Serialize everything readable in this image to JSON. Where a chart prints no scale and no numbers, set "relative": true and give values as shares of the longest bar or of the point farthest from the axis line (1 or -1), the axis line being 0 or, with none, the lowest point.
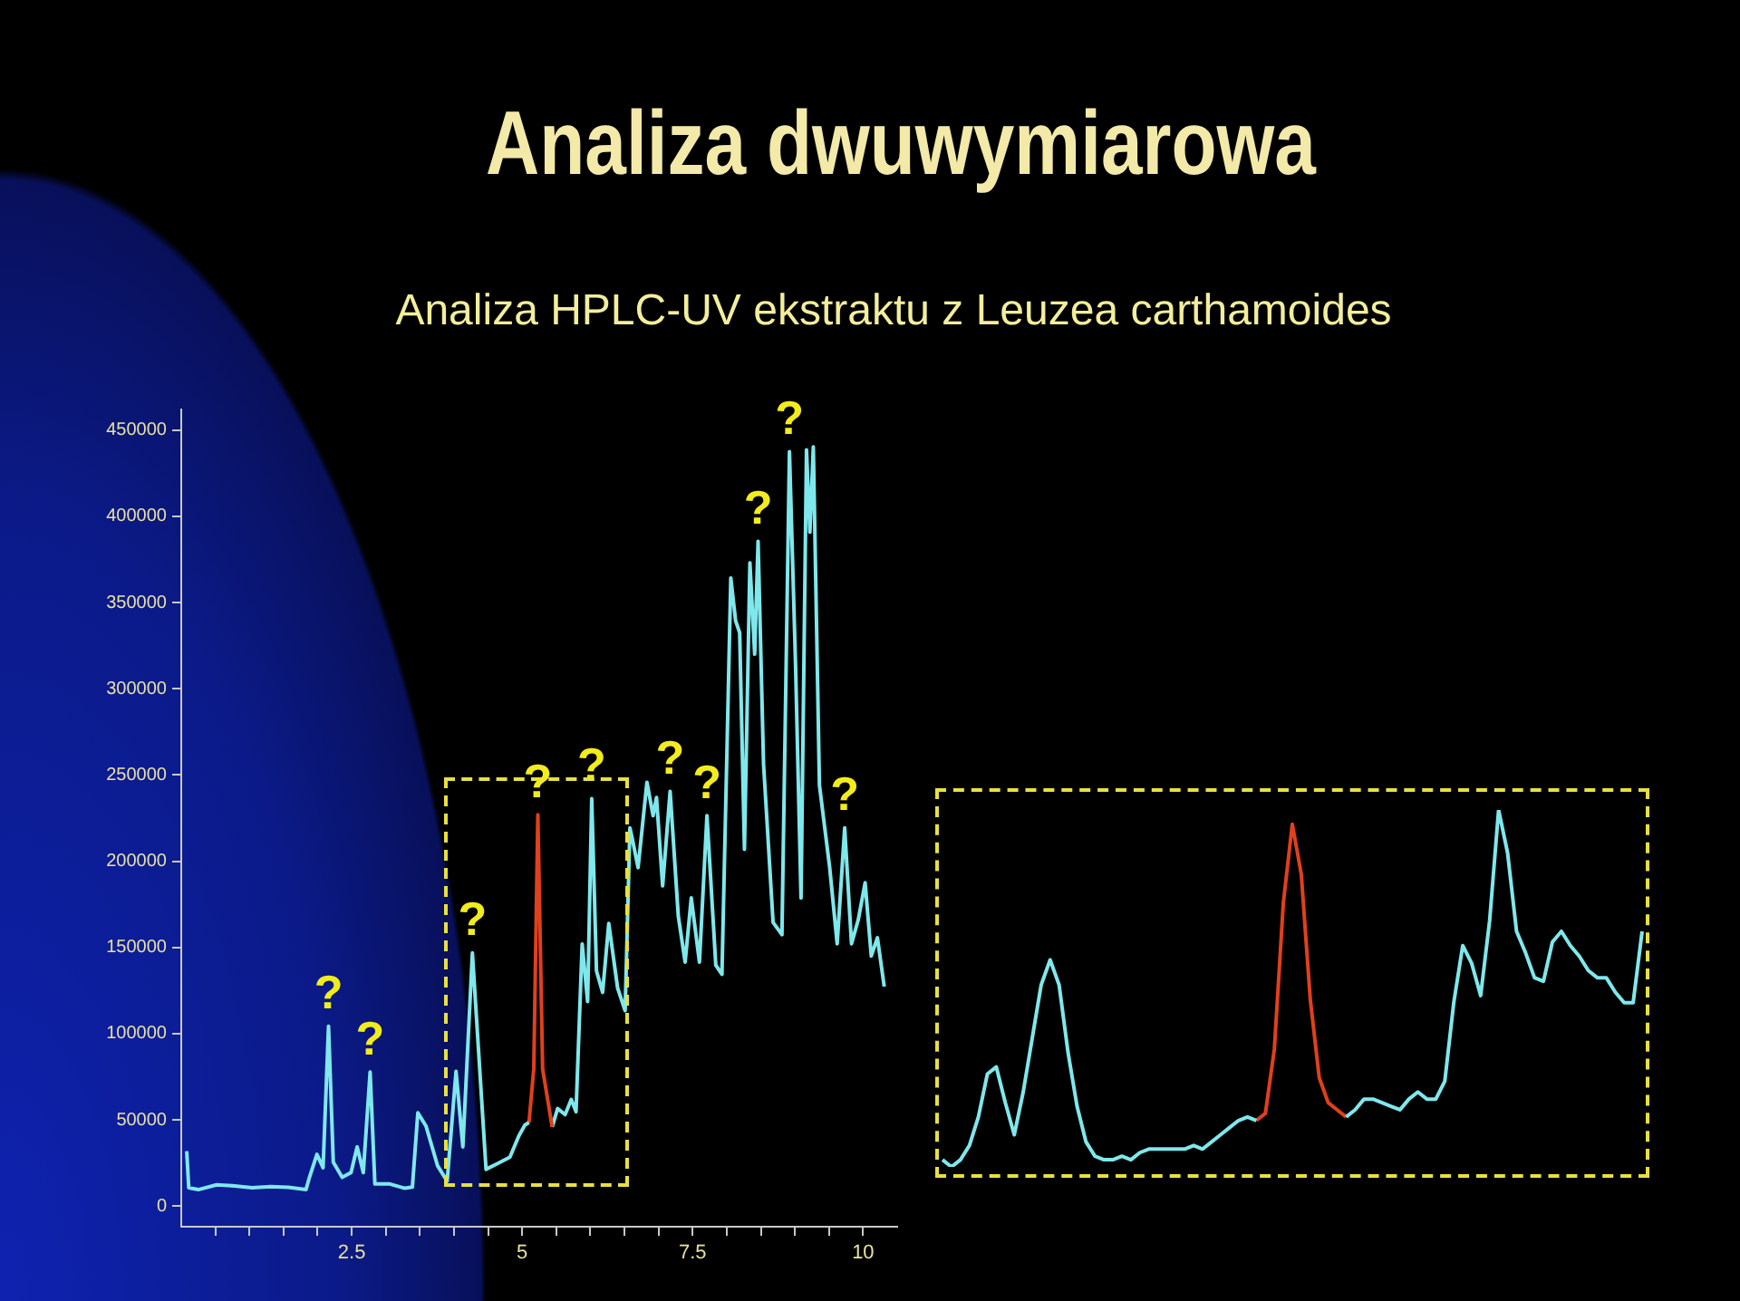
{
  "chart_data": [
    {
      "type": "line",
      "title": "Analiza dwuwymiarowa",
      "subtitle": "Analiza HPLC-UV ekstraktu z Leuzea carthamoides",
      "series": [
        {
          "color": "#7fe8ec",
          "x": [
            0.08,
            0.11,
            0.25,
            0.52,
            0.78,
            1.04,
            1.31,
            1.57,
            1.83,
            1.88,
            1.99,
            2.08,
            2.16,
            2.23,
            2.36,
            2.49,
            2.58,
            2.67,
            2.77,
            2.84,
            3.06,
            3.28,
            3.39,
            3.47,
            3.59,
            3.76,
            3.9,
            4.03,
            4.13,
            4.27,
            4.47,
            4.64,
            4.82,
            4.95,
            5.04,
            5.1
          ],
          "values": [
            31800,
            10600,
            9500,
            12300,
            11700,
            10600,
            11300,
            10900,
            9500,
            16600,
            30000,
            22200,
            104300,
            25400,
            16600,
            19400,
            34300,
            19400,
            77700,
            12800,
            12800,
            10300,
            11000,
            54100,
            46300,
            23300,
            14500,
            78100,
            34300,
            146800,
            21300,
            24700,
            28300,
            40600,
            47000,
            48400
          ]
        },
        {
          "color": "#e0401c",
          "x": [
            5.1,
            5.17,
            5.23,
            5.3,
            5.44
          ],
          "values": [
            48400,
            79500,
            227000,
            79500,
            45900
          ]
        },
        {
          "color": "#7fe8ec",
          "x": [
            5.44,
            5.52,
            5.63,
            5.72,
            5.79,
            5.88,
            5.96,
            6.02,
            6.09,
            6.18,
            6.27,
            6.4,
            6.51,
            6.58,
            6.61,
            6.7,
            6.83,
            6.92,
            6.97,
            7.06,
            7.17,
            7.29,
            7.39,
            7.48,
            7.6,
            7.71,
            7.84,
            7.93,
            8.06,
            8.13,
            8.19,
            8.26,
            8.34,
            8.41,
            8.46,
            8.54,
            8.68,
            8.81,
            8.92,
            9.01,
            9.09,
            9.17,
            9.22,
            9.27,
            9.36,
            9.51,
            9.62,
            9.73,
            9.83,
            9.93,
            10.03,
            10.12,
            10.21,
            10.31
          ],
          "values": [
            45900,
            56500,
            53000,
            61800,
            54700,
            152000,
            118600,
            236300,
            136300,
            123900,
            163900,
            126400,
            113300,
            219300,
            214000,
            196300,
            245800,
            226400,
            237000,
            185700,
            240500,
            168100,
            141500,
            178700,
            141500,
            226400,
            139700,
            134400,
            364300,
            339500,
            332500,
            206900,
            373100,
            320100,
            385600,
            256400,
            164500,
            157400,
            437500,
            313000,
            178700,
            438600,
            390900,
            440300,
            244000,
            196300,
            152100,
            219300,
            152100,
            166200,
            187500,
            145000,
            155600,
            127300
          ]
        }
      ],
      "xlim": [
        0,
        10.5
      ],
      "xticks": [
        {
          "value": 0.5,
          "label": null
        },
        {
          "value": 1,
          "label": null
        },
        {
          "value": 1.5,
          "label": null
        },
        {
          "value": 2,
          "label": null
        },
        2.5,
        {
          "value": 3,
          "label": null
        },
        {
          "value": 3.5,
          "label": null
        },
        {
          "value": 4,
          "label": null
        },
        {
          "value": 4.5,
          "label": null
        },
        5,
        {
          "value": 5.5,
          "label": null
        },
        {
          "value": 6,
          "label": null
        },
        {
          "value": 6.5,
          "label": null
        },
        {
          "value": 7,
          "label": null
        },
        7.5,
        {
          "value": 8,
          "label": null
        },
        {
          "value": 8.5,
          "label": null
        },
        {
          "value": 9,
          "label": null
        },
        {
          "value": 9.5,
          "label": null
        },
        10
      ],
      "ylim": [
        -12000,
        462000
      ],
      "yticks": [
        0,
        50000,
        100000,
        150000,
        200000,
        250000,
        300000,
        350000,
        400000,
        450000
      ],
      "annotations": [
        {
          "text": "?",
          "x": 2.16,
          "y": 104300
        },
        {
          "text": "?",
          "x": 2.77,
          "y": 77700
        },
        {
          "text": "?",
          "x": 4.27,
          "y": 146800
        },
        {
          "text": "?",
          "x": 5.23,
          "y": 227000
        },
        {
          "text": "?",
          "x": 6.02,
          "y": 236300
        },
        {
          "text": "?",
          "x": 7.17,
          "y": 240500
        },
        {
          "text": "?",
          "x": 7.71,
          "y": 226400
        },
        {
          "text": "?",
          "x": 8.46,
          "y": 385600
        },
        {
          "text": "?",
          "x": 8.92,
          "y": 437500
        },
        {
          "text": "?",
          "x": 9.73,
          "y": 219300
        }
      ]
    },
    {
      "type": "line",
      "relative": true,
      "categories": [
        null,
        null,
        null,
        null,
        null,
        null,
        null,
        null,
        null,
        null,
        null,
        null,
        null,
        null,
        null,
        null,
        null,
        null,
        null,
        null,
        null,
        null,
        null,
        null,
        null,
        null,
        null,
        null,
        null,
        null,
        null,
        null,
        null,
        null,
        null,
        null,
        null,
        null,
        null,
        null,
        null,
        null,
        null,
        null,
        null,
        null,
        null,
        null,
        null,
        null,
        null,
        null,
        null,
        null,
        null,
        null,
        null,
        null,
        null,
        null,
        null,
        null,
        null,
        null,
        null,
        null,
        null,
        null,
        null,
        null,
        null,
        null,
        null,
        null,
        null,
        null,
        null,
        null,
        null
      ],
      "series": [
        {
          "color": "#7fe8ec",
          "values": [
            0.02,
            0.0,
            0.02,
            0.06,
            0.14,
            0.26,
            0.28,
            0.18,
            0.09,
            0.21,
            0.36,
            0.51,
            0.58,
            0.51,
            0.32,
            0.17,
            0.07,
            0.03,
            0.02,
            0.02,
            0.03,
            0.02,
            0.04,
            0.05,
            0.05,
            0.05,
            0.05,
            0.05,
            0.06,
            0.05,
            0.07,
            0.09,
            0.11,
            0.13,
            0.14,
            0.13,
            null,
            null,
            null,
            null,
            null,
            null,
            null,
            null,
            null,
            0.14,
            0.16,
            0.19,
            0.19,
            0.18,
            0.17,
            0.16,
            0.19,
            0.21,
            0.19,
            0.19,
            0.24,
            0.46,
            0.62,
            0.57,
            0.48,
            0.69,
            1.0,
            0.88,
            0.66,
            0.6,
            0.53,
            0.52,
            0.63,
            0.66,
            0.62,
            0.59,
            0.55,
            0.53,
            0.53,
            0.49,
            0.46,
            0.46,
            0.66
          ]
        },
        {
          "color": "#e0401c",
          "values": [
            null,
            null,
            null,
            null,
            null,
            null,
            null,
            null,
            null,
            null,
            null,
            null,
            null,
            null,
            null,
            null,
            null,
            null,
            null,
            null,
            null,
            null,
            null,
            null,
            null,
            null,
            null,
            null,
            null,
            null,
            null,
            null,
            null,
            null,
            null,
            0.13,
            0.15,
            0.33,
            0.74,
            0.96,
            0.82,
            0.47,
            0.25,
            0.18,
            0.16,
            0.14,
            null,
            null,
            null,
            null,
            null,
            null,
            null,
            null,
            null,
            null,
            null,
            null,
            null,
            null,
            null,
            null,
            null,
            null,
            null,
            null,
            null,
            null,
            null,
            null,
            null,
            null,
            null,
            null,
            null,
            null,
            null,
            null,
            null
          ]
        }
      ]
    }
  ]
}
